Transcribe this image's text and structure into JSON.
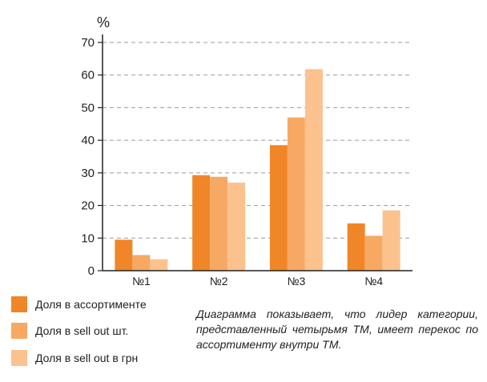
{
  "chart_data": {
    "type": "bar",
    "ylabel": "%",
    "ylim": [
      0,
      70
    ],
    "yticks": [
      0,
      10,
      20,
      30,
      40,
      50,
      60,
      70
    ],
    "grid": "horizontal-dashed",
    "categories": [
      "№1",
      "№2",
      "№3",
      "№4"
    ],
    "series": [
      {
        "name": "Доля в ассортименте",
        "color": "#f08628",
        "values": [
          9.5,
          29.3,
          38.5,
          14.5
        ]
      },
      {
        "name": "Доля в sell out шт.",
        "color": "#f7a964",
        "values": [
          4.8,
          28.8,
          47,
          10.7
        ]
      },
      {
        "name": "Доля в sell out в грн",
        "color": "#fbc28e",
        "values": [
          3.5,
          27,
          61.8,
          18.5
        ]
      }
    ],
    "legend_position": "bottom-left"
  },
  "caption": "Диаграмма показывает, что лидер категории, представленный четырьмя ТМ, имеет перекос по ассортименту внутри ТМ."
}
